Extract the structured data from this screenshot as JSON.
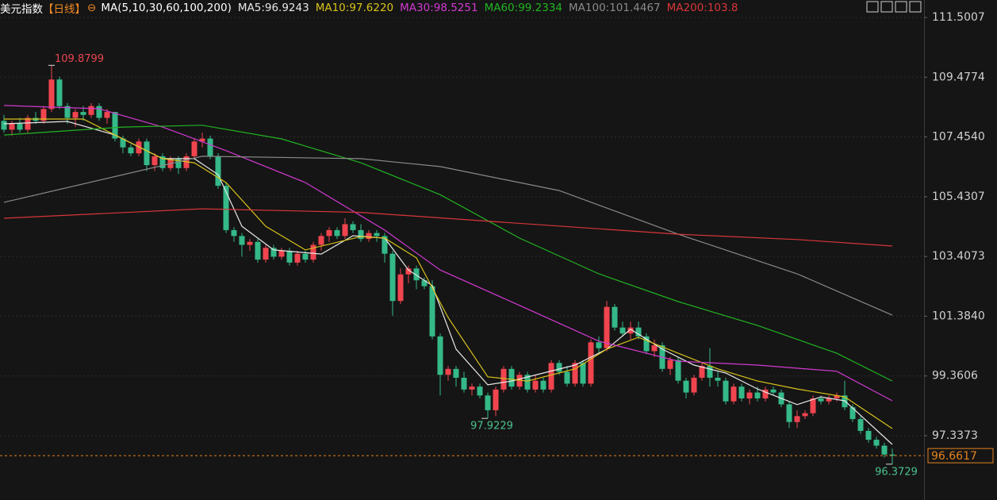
{
  "chart_data": {
    "type": "candlestick",
    "title": "美元指数",
    "period": "【日线】",
    "indicator": "MA(5,10,30,60,100,200)",
    "up_color": "#f0454f",
    "down_color": "#35b989",
    "background": "#151515",
    "grid": true,
    "ylim": [
      95.16,
      112.092
    ],
    "yticks": [
      111.5007,
      109.4774,
      {
        "value": 107.454,
        "label": "107.4540"
      },
      105.4307,
      103.4073,
      {
        "value": 101.384,
        "label": "101.3840"
      },
      99.3606,
      97.3373
    ],
    "open": [
      108.0,
      107.7,
      107.9,
      107.7,
      108.1,
      108.0,
      108.4,
      109.4,
      108.5,
      108.1,
      108.3,
      108.2,
      108.5,
      108.1,
      108.3,
      107.4,
      107.1,
      106.9,
      107.3,
      106.5,
      106.8,
      106.4,
      106.7,
      106.4,
      106.8,
      107.3,
      107.4,
      106.8,
      105.8,
      104.3,
      104.1,
      103.8,
      103.9,
      103.3,
      103.7,
      103.4,
      103.6,
      103.2,
      103.5,
      103.3,
      103.8,
      104.1,
      104.3,
      104.1,
      104.5,
      104.3,
      104.0,
      104.2,
      104.1,
      103.5,
      101.9,
      102.8,
      103.0,
      102.6,
      102.4,
      100.7,
      99.4,
      99.6,
      99.3,
      98.9,
      99.0,
      98.7,
      98.2,
      98.9,
      99.6,
      99.0,
      99.4,
      98.9,
      99.2,
      98.9,
      99.8,
      99.5,
      99.1,
      99.8,
      99.1,
      100.5,
      100.3,
      101.7,
      101.0,
      100.8,
      101.0,
      100.7,
      100.2,
      100.4,
      99.6,
      99.9,
      99.2,
      98.8,
      99.3,
      99.7,
      99.3,
      99.2,
      98.5,
      99.0,
      98.6,
      98.8,
      98.6,
      98.9,
      98.8,
      98.4,
      97.8,
      98.0,
      98.1,
      98.6,
      98.5,
      98.6,
      98.7,
      98.3,
      97.9,
      97.5,
      97.2,
      97.0,
      96.7
    ],
    "high": [
      108.2,
      108.0,
      108.1,
      108.2,
      108.3,
      108.5,
      109.8799,
      109.5,
      108.6,
      108.4,
      108.5,
      108.6,
      108.6,
      108.4,
      108.3,
      107.5,
      107.2,
      107.4,
      107.4,
      106.9,
      106.9,
      106.8,
      106.8,
      106.9,
      107.4,
      107.6,
      107.5,
      106.9,
      105.9,
      104.4,
      104.2,
      104.0,
      104.0,
      103.8,
      103.8,
      103.7,
      103.7,
      103.6,
      103.6,
      103.9,
      104.2,
      104.4,
      104.4,
      104.7,
      104.6,
      104.5,
      104.3,
      104.3,
      104.2,
      103.6,
      103.0,
      103.1,
      103.1,
      102.7,
      102.6,
      100.8,
      99.7,
      99.7,
      99.5,
      99.1,
      99.1,
      98.8,
      99.0,
      99.7,
      99.7,
      99.5,
      99.5,
      99.4,
      99.3,
      99.9,
      99.9,
      99.7,
      99.9,
      99.9,
      100.6,
      100.7,
      101.9,
      101.8,
      101.2,
      101.2,
      101.2,
      100.8,
      100.6,
      100.5,
      100.0,
      100.0,
      99.3,
      99.4,
      99.8,
      100.3,
      99.5,
      99.3,
      99.1,
      99.1,
      98.9,
      99.0,
      99.0,
      99.0,
      98.9,
      98.5,
      98.2,
      98.2,
      98.7,
      98.7,
      98.7,
      98.8,
      99.2,
      98.4,
      98.0,
      97.6,
      97.3,
      97.1,
      96.9
    ],
    "low": [
      107.6,
      107.5,
      107.6,
      107.6,
      107.9,
      107.9,
      108.3,
      108.4,
      107.9,
      107.8,
      108.0,
      108.1,
      108.0,
      107.9,
      107.3,
      106.9,
      106.8,
      106.8,
      106.3,
      106.3,
      106.3,
      106.3,
      106.2,
      106.3,
      106.7,
      107.1,
      106.7,
      105.7,
      104.2,
      103.9,
      103.4,
      103.6,
      103.2,
      103.2,
      103.3,
      103.3,
      103.1,
      103.1,
      103.2,
      103.2,
      103.6,
      103.9,
      104.0,
      104.0,
      104.2,
      103.9,
      103.9,
      103.9,
      103.2,
      101.4,
      101.8,
      102.5,
      102.3,
      102.3,
      100.6,
      98.7,
      99.2,
      99.0,
      98.8,
      98.7,
      98.6,
      97.9229,
      98.0,
      98.8,
      98.9,
      98.9,
      98.8,
      98.8,
      98.8,
      98.8,
      99.4,
      99.0,
      99.0,
      99.0,
      99.0,
      100.1,
      100.2,
      100.9,
      100.7,
      100.6,
      100.6,
      100.1,
      100.0,
      99.5,
      99.4,
      99.1,
      98.6,
      98.7,
      99.2,
      99.0,
      99.0,
      98.4,
      98.4,
      98.5,
      98.4,
      98.5,
      98.5,
      98.7,
      98.3,
      97.6,
      97.6,
      97.9,
      98.0,
      98.4,
      98.4,
      98.5,
      98.2,
      97.8,
      97.4,
      97.1,
      96.9,
      96.6,
      96.3729
    ],
    "close": [
      107.7,
      107.9,
      107.7,
      108.1,
      108.0,
      108.4,
      109.4,
      108.5,
      108.1,
      108.3,
      108.2,
      108.5,
      108.1,
      108.3,
      107.4,
      107.1,
      106.9,
      107.3,
      106.5,
      106.8,
      106.4,
      106.7,
      106.4,
      106.8,
      107.3,
      107.4,
      106.8,
      105.8,
      104.3,
      104.1,
      103.8,
      103.9,
      103.3,
      103.7,
      103.4,
      103.6,
      103.2,
      103.5,
      103.3,
      103.8,
      104.1,
      104.3,
      104.1,
      104.5,
      104.3,
      104.0,
      104.2,
      104.1,
      103.5,
      101.9,
      102.8,
      103.0,
      102.6,
      102.4,
      100.7,
      99.4,
      99.6,
      99.3,
      98.9,
      99.0,
      98.7,
      98.2,
      98.9,
      99.6,
      99.0,
      99.4,
      98.9,
      99.2,
      98.9,
      99.8,
      99.5,
      99.1,
      99.8,
      99.1,
      100.5,
      100.3,
      101.7,
      101.0,
      100.8,
      101.0,
      100.7,
      100.2,
      100.4,
      99.6,
      99.9,
      99.2,
      98.8,
      99.3,
      99.7,
      99.3,
      99.2,
      98.5,
      99.0,
      98.6,
      98.8,
      98.6,
      98.9,
      98.8,
      98.4,
      97.8,
      98.0,
      98.1,
      98.6,
      98.5,
      98.6,
      98.7,
      98.3,
      97.9,
      97.5,
      97.2,
      97.0,
      96.7,
      96.6617
    ],
    "series": [
      {
        "name": "MA5:96.9243",
        "color": "#e8e8e8",
        "x": [
          0,
          8,
          14,
          20,
          24,
          27,
          30,
          34,
          40,
          44,
          48,
          51,
          54,
          57,
          61,
          64,
          68,
          72,
          76,
          79,
          83,
          87,
          91,
          95,
          100,
          103,
          106,
          112
        ],
        "values": [
          107.9,
          107.98,
          107.52,
          106.72,
          106.72,
          106.18,
          104.43,
          103.63,
          103.49,
          104.11,
          104.03,
          102.95,
          102.42,
          100.27,
          99.06,
          99.19,
          99.46,
          99.73,
          100.27,
          100.94,
          100.27,
          99.73,
          99.46,
          98.92,
          98.39,
          98.65,
          98.52,
          97.04
        ]
      },
      {
        "name": "MA10:97.6220",
        "color": "#d8c21a",
        "x": [
          0,
          10,
          16,
          20,
          24,
          28,
          33,
          38,
          45,
          48,
          52,
          56,
          61,
          66,
          72,
          76,
          80,
          85,
          90,
          95,
          100,
          106,
          112
        ],
        "values": [
          108.06,
          108.06,
          107.25,
          106.72,
          106.58,
          105.91,
          104.43,
          103.63,
          104.08,
          104.03,
          103.36,
          101.34,
          99.33,
          99.19,
          99.6,
          100.27,
          100.67,
          100.13,
          99.6,
          99.19,
          98.92,
          98.65,
          97.58
        ]
      },
      {
        "name": "MA30:98.5251",
        "color": "#d23ad2",
        "x": [
          0,
          12,
          20,
          28,
          38,
          48,
          55,
          65,
          75,
          85,
          95,
          105,
          112
        ],
        "values": [
          108.52,
          108.41,
          107.79,
          106.99,
          105.91,
          104.3,
          102.95,
          101.75,
          100.54,
          99.86,
          99.73,
          99.52,
          98.52
        ]
      },
      {
        "name": "MA60:99.2334",
        "color": "#22b422",
        "x": [
          0,
          15,
          25,
          35,
          45,
          55,
          65,
          75,
          85,
          95,
          105,
          112
        ],
        "values": [
          107.52,
          107.79,
          107.85,
          107.39,
          106.58,
          105.5,
          104.03,
          102.82,
          101.88,
          101.07,
          100.13,
          99.19
        ]
      },
      {
        "name": "MA100:101.4467",
        "color": "#8a8a8a",
        "x": [
          0,
          25,
          45,
          55,
          70,
          85,
          100,
          112
        ],
        "values": [
          105.24,
          106.8,
          106.72,
          106.45,
          105.64,
          104.16,
          102.82,
          101.42
        ]
      },
      {
        "name": "MA200:103.8",
        "color": "#d8363a",
        "x": [
          0,
          25,
          45,
          60,
          85,
          100,
          112
        ],
        "values": [
          104.7,
          105.02,
          104.9,
          104.62,
          104.16,
          103.98,
          103.76
        ]
      }
    ]
  }
}
